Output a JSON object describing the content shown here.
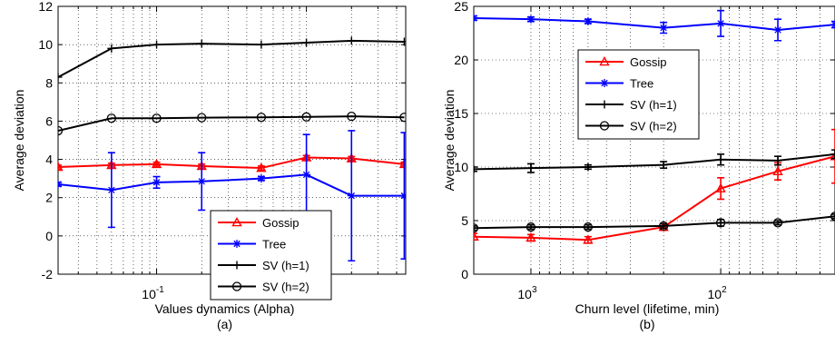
{
  "chart_data": [
    {
      "type": "line",
      "caption": "(a)",
      "xlabel": "Values dynamics (Alpha)",
      "ylabel": "Average deviation",
      "xscale": "log",
      "xlim": [
        0.022,
        4.6
      ],
      "ylim": [
        -2,
        12
      ],
      "yticks": [
        -2,
        0,
        2,
        4,
        6,
        8,
        10,
        12
      ],
      "xtick_labels": [
        {
          "base": "10",
          "exp": "-1",
          "value": 0.1
        },
        {
          "base": "10",
          "exp": "0",
          "value": 1
        }
      ],
      "grid": true,
      "legend_position": "bottom-right",
      "x": [
        0.022,
        0.05,
        0.1,
        0.2,
        0.5,
        1,
        2,
        4.5
      ],
      "series": [
        {
          "name": "Gossip",
          "color": "#ff0000",
          "marker": "triangle",
          "values": [
            3.6,
            3.7,
            3.75,
            3.65,
            3.55,
            4.1,
            4.05,
            3.75
          ],
          "errors": [
            0.1,
            0.1,
            0.1,
            0.1,
            0.1,
            0.1,
            0.1,
            0.1
          ]
        },
        {
          "name": "Tree",
          "color": "#0000ff",
          "marker": "star",
          "values": [
            2.7,
            2.4,
            2.8,
            2.85,
            3.0,
            3.2,
            2.1,
            2.1
          ],
          "errors": [
            0.1,
            1.95,
            0.3,
            1.5,
            0.1,
            2.1,
            3.4,
            3.3
          ]
        },
        {
          "name": "SV (h=1)",
          "color": "#000000",
          "marker": "plus",
          "values": [
            8.3,
            9.8,
            10.0,
            10.05,
            10.0,
            10.1,
            10.2,
            10.15
          ],
          "errors": [
            0,
            0,
            0,
            0,
            0,
            0,
            0,
            0
          ]
        },
        {
          "name": "SV (h=2)",
          "color": "#000000",
          "marker": "circle",
          "values": [
            5.5,
            6.15,
            6.15,
            6.18,
            6.2,
            6.22,
            6.25,
            6.2
          ],
          "errors": [
            0,
            0,
            0,
            0,
            0,
            0,
            0,
            0
          ]
        }
      ]
    },
    {
      "type": "line",
      "caption": "(b)",
      "xlabel": "Churn level (lifetime, min)",
      "ylabel": "Average deviation",
      "xscale": "log",
      "x_reversed": true,
      "xlim": [
        2000,
        25
      ],
      "ylim": [
        0,
        25
      ],
      "yticks": [
        0,
        5,
        10,
        15,
        20,
        25
      ],
      "xtick_labels": [
        {
          "base": "10",
          "exp": "3",
          "value": 1000
        },
        {
          "base": "10",
          "exp": "2",
          "value": 100
        }
      ],
      "grid": true,
      "legend_position": "top-left",
      "x": [
        2000,
        1000,
        500,
        200,
        100,
        50,
        25
      ],
      "series": [
        {
          "name": "Gossip",
          "color": "#ff0000",
          "marker": "triangle",
          "values": [
            3.5,
            3.4,
            3.2,
            4.4,
            8.0,
            9.6,
            11.0
          ],
          "errors": [
            0.3,
            0.3,
            0.3,
            0.3,
            1.0,
            0.8,
            2.5
          ]
        },
        {
          "name": "Tree",
          "color": "#0000ff",
          "marker": "star",
          "values": [
            23.9,
            23.8,
            23.6,
            23.0,
            23.4,
            22.8,
            23.3
          ],
          "errors": [
            0.2,
            0.2,
            0.2,
            0.5,
            1.2,
            1.0,
            0.3
          ]
        },
        {
          "name": "SV (h=1)",
          "color": "#000000",
          "marker": "plus",
          "values": [
            9.8,
            9.9,
            10.0,
            10.2,
            10.7,
            10.6,
            11.2
          ],
          "errors": [
            0.2,
            0.4,
            0.2,
            0.3,
            0.5,
            0.4,
            0.4
          ]
        },
        {
          "name": "SV (h=2)",
          "color": "#000000",
          "marker": "circle",
          "values": [
            4.3,
            4.4,
            4.4,
            4.5,
            4.8,
            4.8,
            5.4
          ],
          "errors": [
            0.2,
            0.2,
            0.2,
            0.2,
            0.3,
            0.2,
            0.2
          ]
        }
      ]
    }
  ]
}
